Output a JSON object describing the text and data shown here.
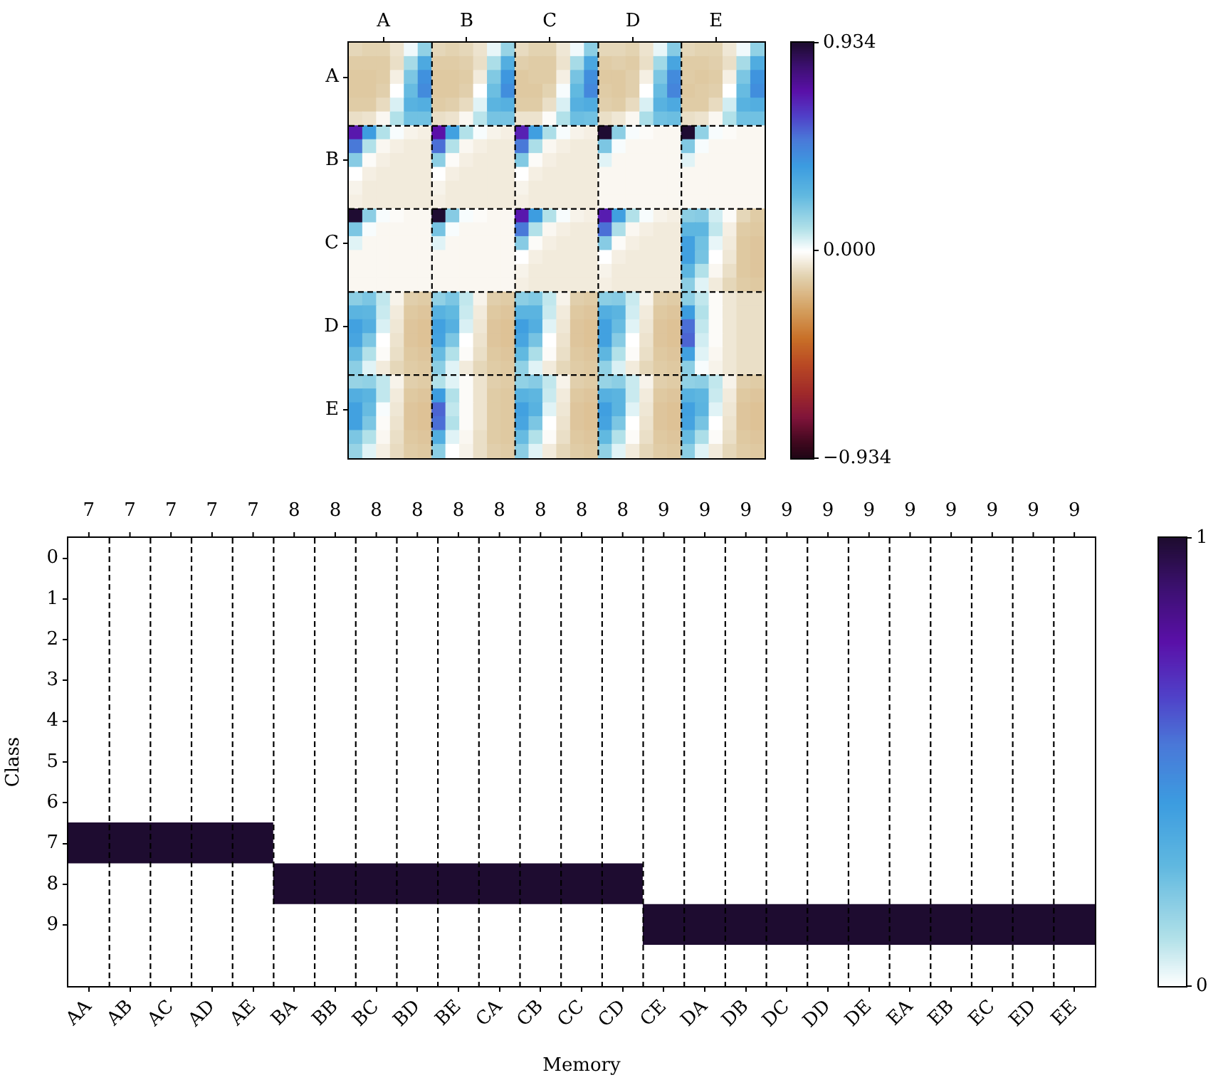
{
  "chart_data": [
    {
      "type": "heatmap",
      "categories": [
        null,
        null,
        "A",
        null,
        null,
        null,
        null,
        null,
        "B",
        null,
        null,
        null,
        null,
        null,
        "C",
        null,
        null,
        null,
        null,
        null,
        "D",
        null,
        null,
        null,
        null,
        null,
        "E",
        null,
        null,
        null
      ],
      "y_categories": [
        null,
        null,
        "A",
        null,
        null,
        null,
        null,
        null,
        "B",
        null,
        null,
        null,
        null,
        null,
        "C",
        null,
        null,
        null,
        null,
        null,
        "D",
        null,
        null,
        null,
        null,
        null,
        "E",
        null,
        null,
        null
      ],
      "clim": [
        -0.934,
        0.934
      ],
      "cticks": [
        {
          "value": -0.934,
          "label": "−0.934"
        },
        {
          "value": 0,
          "label": "0.000"
        },
        0.934
      ],
      "cells": [
        [
          -0.1,
          -0.11,
          -0.11,
          -0.07,
          0.02,
          0.16,
          -0.1,
          -0.11,
          -0.1,
          -0.07,
          0.03,
          0.15,
          -0.09,
          -0.11,
          -0.11,
          -0.06,
          0.02,
          0.17,
          -0.1,
          -0.1,
          -0.11,
          -0.07,
          0.03,
          0.18,
          -0.1,
          -0.11,
          -0.11,
          -0.06,
          0.02,
          0.16
        ],
        [
          -0.13,
          -0.13,
          -0.13,
          -0.08,
          0.12,
          0.32,
          -0.13,
          -0.13,
          -0.12,
          -0.08,
          0.11,
          0.3,
          -0.12,
          -0.13,
          -0.13,
          -0.07,
          0.12,
          0.33,
          -0.13,
          -0.12,
          -0.13,
          -0.08,
          0.13,
          0.34,
          -0.13,
          -0.13,
          -0.12,
          -0.08,
          0.12,
          0.31
        ],
        [
          -0.14,
          -0.14,
          -0.13,
          -0.04,
          0.2,
          0.42,
          -0.14,
          -0.14,
          -0.13,
          -0.05,
          0.19,
          0.4,
          -0.14,
          -0.13,
          -0.13,
          -0.04,
          0.21,
          0.43,
          -0.14,
          -0.14,
          -0.12,
          -0.04,
          0.2,
          0.44,
          -0.13,
          -0.14,
          -0.13,
          -0.04,
          0.2,
          0.41
        ],
        [
          -0.14,
          -0.14,
          -0.12,
          0.0,
          0.24,
          0.44,
          -0.14,
          -0.14,
          -0.12,
          0.0,
          0.23,
          0.43,
          -0.14,
          -0.14,
          -0.11,
          0.01,
          0.25,
          0.45,
          -0.13,
          -0.14,
          -0.12,
          0.0,
          0.24,
          0.46,
          -0.14,
          -0.13,
          -0.12,
          0.0,
          0.24,
          0.43
        ],
        [
          -0.13,
          -0.13,
          -0.09,
          0.05,
          0.28,
          0.3,
          -0.13,
          -0.12,
          -0.09,
          0.04,
          0.27,
          0.29,
          -0.13,
          -0.13,
          -0.08,
          0.05,
          0.29,
          0.31,
          -0.12,
          -0.13,
          -0.09,
          0.05,
          0.28,
          0.32,
          -0.13,
          -0.13,
          -0.09,
          0.06,
          0.28,
          0.3
        ],
        [
          -0.08,
          -0.07,
          -0.02,
          0.1,
          0.22,
          0.22,
          -0.08,
          -0.07,
          -0.02,
          0.09,
          0.21,
          0.21,
          -0.07,
          -0.07,
          -0.01,
          0.1,
          0.23,
          0.22,
          -0.08,
          -0.06,
          -0.02,
          0.11,
          0.22,
          0.23,
          -0.08,
          -0.07,
          -0.02,
          0.1,
          0.22,
          0.22
        ],
        [
          0.7,
          0.38,
          0.1,
          0.01,
          -0.03,
          -0.04,
          0.72,
          0.36,
          0.1,
          0.01,
          -0.03,
          -0.04,
          0.68,
          0.37,
          0.11,
          0.01,
          -0.03,
          -0.04,
          0.93,
          0.17,
          0.01,
          -0.01,
          -0.02,
          -0.02,
          0.93,
          0.16,
          0.01,
          -0.01,
          -0.02,
          -0.02
        ],
        [
          0.5,
          0.1,
          -0.02,
          -0.04,
          -0.05,
          -0.05,
          0.52,
          0.1,
          -0.02,
          -0.04,
          -0.05,
          -0.05,
          0.5,
          0.11,
          -0.02,
          -0.04,
          -0.05,
          -0.05,
          0.2,
          0.01,
          -0.02,
          -0.02,
          -0.02,
          -0.02,
          0.19,
          0.01,
          -0.02,
          -0.02,
          -0.02,
          -0.02
        ],
        [
          0.18,
          -0.01,
          -0.04,
          -0.05,
          -0.05,
          -0.05,
          0.17,
          -0.01,
          -0.04,
          -0.05,
          -0.05,
          -0.05,
          0.19,
          -0.01,
          -0.04,
          -0.05,
          -0.05,
          -0.05,
          0.04,
          -0.02,
          -0.02,
          -0.02,
          -0.02,
          -0.02,
          0.04,
          -0.02,
          -0.02,
          -0.02,
          -0.02,
          -0.02
        ],
        [
          0.0,
          -0.04,
          -0.05,
          -0.05,
          -0.05,
          -0.05,
          0.0,
          -0.04,
          -0.05,
          -0.05,
          -0.05,
          -0.05,
          0.0,
          -0.04,
          -0.05,
          -0.05,
          -0.05,
          -0.05,
          -0.02,
          -0.02,
          -0.02,
          -0.02,
          -0.02,
          -0.02,
          -0.02,
          -0.02,
          -0.02,
          -0.02,
          -0.02,
          -0.02
        ],
        [
          -0.03,
          -0.05,
          -0.05,
          -0.05,
          -0.05,
          -0.05,
          -0.03,
          -0.05,
          -0.05,
          -0.05,
          -0.05,
          -0.05,
          -0.03,
          -0.05,
          -0.05,
          -0.05,
          -0.05,
          -0.05,
          -0.02,
          -0.02,
          -0.02,
          -0.02,
          -0.02,
          -0.02,
          -0.02,
          -0.02,
          -0.02,
          -0.02,
          -0.02,
          -0.02
        ],
        [
          -0.04,
          -0.05,
          -0.05,
          -0.05,
          -0.05,
          -0.05,
          -0.04,
          -0.05,
          -0.05,
          -0.05,
          -0.05,
          -0.05,
          -0.04,
          -0.05,
          -0.05,
          -0.05,
          -0.05,
          -0.05,
          -0.02,
          -0.02,
          -0.02,
          -0.02,
          -0.02,
          -0.02,
          -0.02,
          -0.02,
          -0.02,
          -0.02,
          -0.02,
          -0.02
        ],
        [
          0.93,
          0.17,
          0.01,
          -0.01,
          -0.02,
          -0.02,
          0.93,
          0.18,
          0.01,
          -0.01,
          -0.02,
          -0.02,
          0.7,
          0.38,
          0.1,
          0.01,
          -0.03,
          -0.04,
          0.69,
          0.37,
          0.1,
          0.01,
          -0.03,
          -0.04,
          0.17,
          0.18,
          0.06,
          -0.01,
          -0.1,
          -0.13
        ],
        [
          0.2,
          0.01,
          -0.02,
          -0.02,
          -0.02,
          -0.02,
          0.21,
          0.01,
          -0.02,
          -0.02,
          -0.02,
          -0.02,
          0.5,
          0.1,
          -0.02,
          -0.04,
          -0.05,
          -0.05,
          0.52,
          0.11,
          -0.02,
          -0.04,
          -0.05,
          -0.05,
          0.26,
          0.26,
          0.08,
          -0.04,
          -0.13,
          -0.14
        ],
        [
          0.04,
          -0.02,
          -0.02,
          -0.02,
          -0.02,
          -0.02,
          0.04,
          -0.02,
          -0.02,
          -0.02,
          -0.02,
          -0.02,
          0.18,
          -0.01,
          -0.04,
          -0.05,
          -0.05,
          -0.05,
          0.18,
          -0.01,
          -0.04,
          -0.05,
          -0.05,
          -0.05,
          0.36,
          0.22,
          0.03,
          -0.05,
          -0.14,
          -0.15
        ],
        [
          -0.02,
          -0.02,
          -0.02,
          -0.02,
          -0.02,
          -0.02,
          -0.02,
          -0.02,
          -0.02,
          -0.02,
          -0.02,
          -0.02,
          0.0,
          -0.04,
          -0.05,
          -0.05,
          -0.05,
          -0.05,
          0.0,
          -0.04,
          -0.05,
          -0.05,
          -0.05,
          -0.05,
          0.36,
          0.21,
          0.0,
          -0.06,
          -0.14,
          -0.15
        ],
        [
          -0.02,
          -0.02,
          -0.02,
          -0.02,
          -0.02,
          -0.02,
          -0.02,
          -0.02,
          -0.02,
          -0.02,
          -0.02,
          -0.02,
          -0.03,
          -0.05,
          -0.05,
          -0.05,
          -0.05,
          -0.05,
          -0.03,
          -0.05,
          -0.05,
          -0.05,
          -0.05,
          -0.05,
          0.26,
          0.1,
          -0.02,
          -0.08,
          -0.14,
          -0.15
        ],
        [
          -0.02,
          -0.02,
          -0.02,
          -0.02,
          -0.02,
          -0.02,
          -0.02,
          -0.02,
          -0.02,
          -0.02,
          -0.02,
          -0.02,
          -0.04,
          -0.05,
          -0.05,
          -0.05,
          -0.05,
          -0.05,
          -0.04,
          -0.05,
          -0.05,
          -0.05,
          -0.05,
          -0.05,
          0.17,
          0.04,
          -0.05,
          -0.1,
          -0.13,
          -0.14
        ],
        [
          0.17,
          0.2,
          0.08,
          -0.03,
          -0.12,
          -0.13,
          0.16,
          0.2,
          0.08,
          -0.03,
          -0.12,
          -0.13,
          0.17,
          0.19,
          0.08,
          -0.03,
          -0.12,
          -0.13,
          0.17,
          0.18,
          0.07,
          -0.03,
          -0.12,
          -0.13,
          0.17,
          0.08,
          -0.01,
          -0.06,
          -0.08,
          -0.08
        ],
        [
          0.27,
          0.26,
          0.07,
          -0.05,
          -0.14,
          -0.15,
          0.28,
          0.25,
          0.07,
          -0.05,
          -0.14,
          -0.15,
          0.27,
          0.27,
          0.07,
          -0.05,
          -0.14,
          -0.15,
          0.3,
          0.27,
          0.06,
          -0.05,
          -0.14,
          -0.15,
          0.38,
          0.1,
          -0.01,
          -0.06,
          -0.08,
          -0.08
        ],
        [
          0.36,
          0.3,
          0.05,
          -0.06,
          -0.15,
          -0.16,
          0.36,
          0.29,
          0.05,
          -0.06,
          -0.15,
          -0.16,
          0.37,
          0.3,
          0.04,
          -0.06,
          -0.15,
          -0.16,
          0.36,
          0.24,
          0.04,
          -0.06,
          -0.15,
          -0.16,
          0.52,
          0.08,
          -0.01,
          -0.06,
          -0.08,
          -0.08
        ],
        [
          0.34,
          0.2,
          0.0,
          -0.07,
          -0.15,
          -0.16,
          0.35,
          0.2,
          0.0,
          -0.07,
          -0.15,
          -0.16,
          0.34,
          0.21,
          0.0,
          -0.07,
          -0.15,
          -0.16,
          0.36,
          0.18,
          0.0,
          -0.07,
          -0.15,
          -0.16,
          0.54,
          0.06,
          -0.01,
          -0.06,
          -0.08,
          -0.08
        ],
        [
          0.24,
          0.1,
          -0.01,
          -0.08,
          -0.14,
          -0.15,
          0.24,
          0.1,
          -0.01,
          -0.08,
          -0.14,
          -0.15,
          0.25,
          0.11,
          -0.01,
          -0.08,
          -0.14,
          -0.15,
          0.26,
          0.1,
          -0.01,
          -0.08,
          -0.14,
          -0.15,
          0.36,
          0.04,
          -0.02,
          -0.06,
          -0.08,
          -0.08
        ],
        [
          0.17,
          0.04,
          -0.05,
          -0.1,
          -0.13,
          -0.14,
          0.17,
          0.04,
          -0.05,
          -0.1,
          -0.13,
          -0.14,
          0.16,
          0.04,
          -0.05,
          -0.1,
          -0.13,
          -0.14,
          0.16,
          0.05,
          -0.05,
          -0.1,
          -0.13,
          -0.14,
          0.17,
          0.01,
          -0.03,
          -0.06,
          -0.08,
          -0.08
        ],
        [
          0.15,
          0.16,
          0.08,
          -0.03,
          -0.12,
          -0.13,
          0.1,
          0.04,
          -0.01,
          -0.07,
          -0.12,
          -0.13,
          0.16,
          0.18,
          0.08,
          -0.03,
          -0.12,
          -0.13,
          0.15,
          0.17,
          0.07,
          -0.03,
          -0.12,
          -0.13,
          0.16,
          0.17,
          0.08,
          -0.03,
          -0.12,
          -0.13
        ],
        [
          0.3,
          0.27,
          0.08,
          -0.05,
          -0.14,
          -0.15,
          0.38,
          0.1,
          -0.01,
          -0.07,
          -0.13,
          -0.14,
          0.28,
          0.26,
          0.07,
          -0.05,
          -0.14,
          -0.15,
          0.29,
          0.27,
          0.07,
          -0.05,
          -0.14,
          -0.15,
          0.28,
          0.26,
          0.07,
          -0.05,
          -0.14,
          -0.15
        ],
        [
          0.36,
          0.24,
          0.01,
          -0.06,
          -0.15,
          -0.16,
          0.54,
          0.08,
          -0.01,
          -0.07,
          -0.13,
          -0.14,
          0.36,
          0.28,
          0.04,
          -0.06,
          -0.15,
          -0.16,
          0.37,
          0.27,
          0.04,
          -0.06,
          -0.15,
          -0.16,
          0.36,
          0.27,
          0.04,
          -0.06,
          -0.15,
          -0.16
        ],
        [
          0.36,
          0.2,
          -0.01,
          -0.07,
          -0.15,
          -0.16,
          0.52,
          0.1,
          -0.01,
          -0.07,
          -0.13,
          -0.14,
          0.34,
          0.2,
          0.0,
          -0.07,
          -0.15,
          -0.16,
          0.35,
          0.2,
          0.0,
          -0.07,
          -0.15,
          -0.16,
          0.35,
          0.21,
          0.0,
          -0.07,
          -0.15,
          -0.16
        ],
        [
          0.2,
          0.1,
          -0.02,
          -0.08,
          -0.14,
          -0.15,
          0.3,
          0.04,
          -0.02,
          -0.08,
          -0.13,
          -0.14,
          0.24,
          0.1,
          -0.01,
          -0.08,
          -0.14,
          -0.15,
          0.25,
          0.1,
          -0.01,
          -0.08,
          -0.14,
          -0.15,
          0.24,
          0.11,
          -0.01,
          -0.08,
          -0.14,
          -0.15
        ],
        [
          0.15,
          0.04,
          -0.04,
          -0.09,
          -0.13,
          -0.14,
          0.17,
          0.0,
          -0.03,
          -0.08,
          -0.12,
          -0.13,
          0.17,
          0.04,
          -0.05,
          -0.1,
          -0.13,
          -0.14,
          0.16,
          0.04,
          -0.05,
          -0.1,
          -0.13,
          -0.14,
          0.17,
          0.04,
          -0.05,
          -0.1,
          -0.13,
          -0.14
        ]
      ]
    },
    {
      "type": "heatmap",
      "xlabel": "Memory",
      "ylabel": "Class",
      "categories": [
        "AA",
        "AB",
        "AC",
        "AD",
        "AE",
        "BA",
        "BB",
        "BC",
        "BD",
        "BE",
        "CA",
        "CB",
        "CC",
        "CD",
        "CE",
        "DA",
        "DB",
        "DC",
        "DD",
        "DE",
        "EA",
        "EB",
        "EC",
        "ED",
        "EE"
      ],
      "y_categories": [
        "0",
        "1",
        "2",
        "3",
        "4",
        "5",
        "6",
        "7",
        "8",
        "9",
        null
      ],
      "annotations": [
        "7",
        "7",
        "7",
        "7",
        "7",
        "8",
        "8",
        "8",
        "8",
        "8",
        "8",
        "8",
        "8",
        "8",
        "9",
        "9",
        "9",
        "9",
        "9",
        "9",
        "9",
        "9",
        "9",
        "9",
        "9"
      ],
      "clim": [
        0,
        1
      ],
      "cticks": [
        0,
        1
      ],
      "grid": "x",
      "cells": [
        [
          0,
          0,
          0,
          0,
          0,
          0,
          0,
          0,
          0,
          0,
          0,
          0,
          0,
          0,
          0,
          0,
          0,
          0,
          0,
          0,
          0,
          0,
          0,
          0,
          0
        ],
        [
          0,
          0,
          0,
          0,
          0,
          0,
          0,
          0,
          0,
          0,
          0,
          0,
          0,
          0,
          0,
          0,
          0,
          0,
          0,
          0,
          0,
          0,
          0,
          0,
          0
        ],
        [
          0,
          0,
          0,
          0,
          0,
          0,
          0,
          0,
          0,
          0,
          0,
          0,
          0,
          0,
          0,
          0,
          0,
          0,
          0,
          0,
          0,
          0,
          0,
          0,
          0
        ],
        [
          0,
          0,
          0,
          0,
          0,
          0,
          0,
          0,
          0,
          0,
          0,
          0,
          0,
          0,
          0,
          0,
          0,
          0,
          0,
          0,
          0,
          0,
          0,
          0,
          0
        ],
        [
          0,
          0,
          0,
          0,
          0,
          0,
          0,
          0,
          0,
          0,
          0,
          0,
          0,
          0,
          0,
          0,
          0,
          0,
          0,
          0,
          0,
          0,
          0,
          0,
          0
        ],
        [
          0,
          0,
          0,
          0,
          0,
          0,
          0,
          0,
          0,
          0,
          0,
          0,
          0,
          0,
          0,
          0,
          0,
          0,
          0,
          0,
          0,
          0,
          0,
          0,
          0
        ],
        [
          0,
          0,
          0,
          0,
          0,
          0,
          0,
          0,
          0,
          0,
          0,
          0,
          0,
          0,
          0,
          0,
          0,
          0,
          0,
          0,
          0,
          0,
          0,
          0,
          0
        ],
        [
          1,
          1,
          1,
          1,
          1,
          0,
          0,
          0,
          0,
          0,
          0,
          0,
          0,
          0,
          0,
          0,
          0,
          0,
          0,
          0,
          0,
          0,
          0,
          0,
          0
        ],
        [
          0,
          0,
          0,
          0,
          0,
          1,
          1,
          1,
          1,
          1,
          1,
          1,
          1,
          1,
          0,
          0,
          0,
          0,
          0,
          0,
          0,
          0,
          0,
          0,
          0
        ],
        [
          0,
          0,
          0,
          0,
          0,
          0,
          0,
          0,
          0,
          0,
          0,
          0,
          0,
          0,
          1,
          1,
          1,
          1,
          1,
          1,
          1,
          1,
          1,
          1,
          1
        ],
        [
          0,
          0,
          0,
          0,
          0,
          0,
          0,
          0,
          0,
          0,
          0,
          0,
          0,
          0,
          0,
          0,
          0,
          0,
          0,
          0,
          0,
          0,
          0,
          0,
          0
        ]
      ]
    }
  ]
}
